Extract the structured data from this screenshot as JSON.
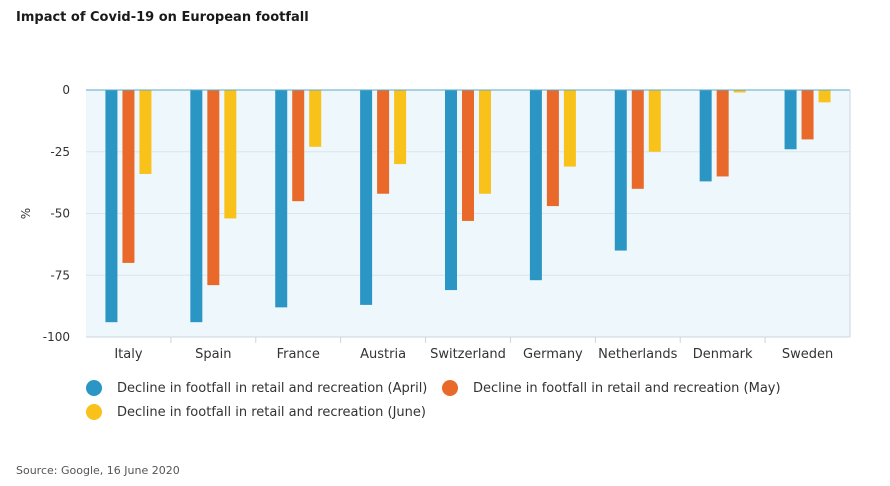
{
  "title": "Impact of Covid-19 on European footfall",
  "source": "Source: Google, 16 June 2020",
  "colors": {
    "april": "#2b96c4",
    "may": "#e8692a",
    "june": "#f8c21a",
    "plot_bg": "#eef7fb"
  },
  "chart_data": {
    "type": "bar",
    "title": "Impact of Covid-19 on European footfall",
    "ylabel": "%",
    "xlabel": "",
    "ylim": [
      -100,
      0
    ],
    "yticks": [
      0,
      -25,
      -50,
      -75,
      -100
    ],
    "grid": true,
    "legend_position": "bottom",
    "categories": [
      "Italy",
      "Spain",
      "France",
      "Austria",
      "Switzerland",
      "Germany",
      "Netherlands",
      "Denmark",
      "Sweden"
    ],
    "series": [
      {
        "name": "Decline in footfall in retail and recreation (April)",
        "color": "#2b96c4",
        "values": [
          -94,
          -94,
          -88,
          -87,
          -81,
          -77,
          -65,
          -37,
          -24
        ]
      },
      {
        "name": "Decline in footfall in retail and recreation (May)",
        "color": "#e8692a",
        "values": [
          -70,
          -79,
          -45,
          -42,
          -53,
          -47,
          -40,
          -35,
          -20
        ]
      },
      {
        "name": "Decline in footfall in retail and recreation (June)",
        "color": "#f8c21a",
        "values": [
          -34,
          -52,
          -23,
          -30,
          -42,
          -31,
          -25,
          -1,
          -5
        ]
      }
    ]
  }
}
